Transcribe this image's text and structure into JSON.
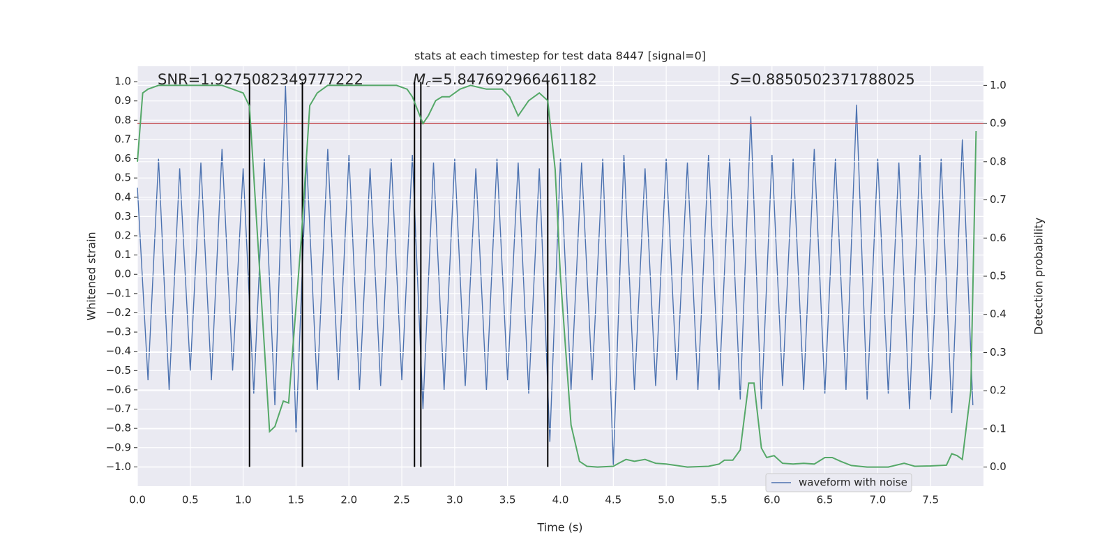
{
  "chart_data": {
    "type": "line",
    "title": "stats at each timestep for test data 8447 [signal=0]",
    "x_label": "Time (s)",
    "y_label": "Whitened strain",
    "y2_label": "Detection probability",
    "annotations": [
      {
        "text": "SNR=1.9275082349777222"
      },
      {
        "symbol": "M",
        "subscript": "c",
        "text": "=5.847692966461182"
      },
      {
        "symbol": "S",
        "text": "=0.8850502371788025"
      }
    ],
    "grid": true,
    "legend": "lower right",
    "xlim": [
      0,
      8
    ],
    "ylim": [
      -1.1,
      1.08
    ],
    "y2lim": [
      -0.05,
      1.05
    ],
    "xticks": [
      {
        "value": 0,
        "label": "0.0"
      },
      0.5,
      {
        "value": 1,
        "label": "1.0"
      },
      1.5,
      {
        "value": 2,
        "label": "2.0"
      },
      2.5,
      {
        "value": 3,
        "label": "3.0"
      },
      3.5,
      {
        "value": 4,
        "label": "4.0"
      },
      4.5,
      {
        "value": 5,
        "label": "5.0"
      },
      5.5,
      {
        "value": 6,
        "label": "6.0"
      },
      6.5,
      {
        "value": 7,
        "label": "7.0"
      },
      7.5
    ],
    "yticks": [
      {
        "value": -1,
        "label": "−1.0"
      },
      {
        "value": -0.9,
        "label": "−0.9"
      },
      {
        "value": -0.8,
        "label": "−0.8"
      },
      {
        "value": -0.7,
        "label": "−0.7"
      },
      {
        "value": -0.6,
        "label": "−0.6"
      },
      {
        "value": -0.5,
        "label": "−0.5"
      },
      {
        "value": -0.4,
        "label": "−0.4"
      },
      {
        "value": -0.3,
        "label": "−0.3"
      },
      {
        "value": -0.2,
        "label": "−0.2"
      },
      {
        "value": -0.1,
        "label": "−0.1"
      },
      {
        "value": 0,
        "label": "0.0"
      },
      0.1,
      0.2,
      0.3,
      0.4,
      0.5,
      0.6,
      0.7,
      0.8,
      0.9,
      {
        "value": 1,
        "label": "1.0"
      }
    ],
    "y2ticks": [
      {
        "value": 0,
        "label": "0.0"
      },
      0.1,
      0.2,
      0.3,
      0.4,
      0.5,
      0.6,
      0.7,
      0.8,
      0.9,
      {
        "value": 1,
        "label": "1.0"
      }
    ],
    "vlines": [
      1.06,
      1.56,
      2.62,
      2.68,
      3.88
    ],
    "vline_range": [
      -1,
      1
    ],
    "vline_color": "#000000",
    "threshold_y2": 0.9,
    "threshold_color": "#c44e52",
    "series": [
      {
        "name": "waveform with noise",
        "color": "#4c72b0",
        "x": [
          0.0,
          0.1,
          0.2,
          0.3,
          0.4,
          0.5,
          0.6,
          0.7,
          0.8,
          0.9,
          1.0,
          1.1,
          1.2,
          1.3,
          1.4,
          1.5,
          1.6,
          1.7,
          1.8,
          1.9,
          2.0,
          2.1,
          2.2,
          2.3,
          2.4,
          2.5,
          2.6,
          2.7,
          2.8,
          2.9,
          3.0,
          3.1,
          3.2,
          3.3,
          3.4,
          3.5,
          3.6,
          3.7,
          3.8,
          3.9,
          4.0,
          4.1,
          4.2,
          4.3,
          4.4,
          4.5,
          4.6,
          4.7,
          4.8,
          4.9,
          5.0,
          5.1,
          5.2,
          5.3,
          5.4,
          5.5,
          5.6,
          5.7,
          5.8,
          5.9,
          6.0,
          6.1,
          6.2,
          6.3,
          6.4,
          6.5,
          6.6,
          6.7,
          6.8,
          6.9,
          7.0,
          7.1,
          7.2,
          7.3,
          7.4,
          7.5,
          7.6,
          7.7,
          7.8,
          7.9
        ],
        "values": [
          0.45,
          -0.55,
          0.6,
          -0.6,
          0.55,
          -0.5,
          0.58,
          -0.55,
          0.65,
          -0.5,
          0.55,
          -0.62,
          0.6,
          -0.68,
          0.98,
          -0.82,
          0.6,
          -0.6,
          0.65,
          -0.55,
          0.62,
          -0.6,
          0.55,
          -0.58,
          0.6,
          -0.55,
          0.62,
          -0.7,
          0.58,
          -0.6,
          0.6,
          -0.58,
          0.55,
          -0.6,
          0.6,
          -0.55,
          0.58,
          -0.62,
          0.55,
          -0.87,
          0.6,
          -0.6,
          0.58,
          -0.55,
          0.6,
          -0.99,
          0.62,
          -0.6,
          0.55,
          -0.58,
          0.6,
          -0.55,
          0.58,
          -0.6,
          0.62,
          -0.6,
          0.6,
          -0.65,
          0.82,
          -0.7,
          0.62,
          -0.58,
          0.6,
          -0.6,
          0.65,
          -0.62,
          0.6,
          -0.6,
          0.88,
          -0.65,
          0.6,
          -0.62,
          0.58,
          -0.7,
          0.62,
          -0.65,
          0.6,
          -0.72,
          0.7,
          -0.68
        ]
      },
      {
        "color": "#55a868",
        "axis": "y2",
        "x": [
          0,
          0.05,
          0.1,
          0.2,
          0.4,
          0.6,
          0.8,
          0.9,
          1.0,
          1.06,
          1.25,
          1.3,
          1.38,
          1.43,
          1.55,
          1.63,
          1.7,
          1.8,
          2.0,
          2.2,
          2.45,
          2.55,
          2.6,
          2.7,
          2.75,
          2.82,
          2.88,
          2.95,
          3.05,
          3.15,
          3.3,
          3.45,
          3.52,
          3.6,
          3.7,
          3.8,
          3.88,
          3.95,
          4.0,
          4.1,
          4.18,
          4.25,
          4.35,
          4.5,
          4.55,
          4.62,
          4.7,
          4.8,
          4.9,
          5.0,
          5.2,
          5.4,
          5.5,
          5.55,
          5.63,
          5.7,
          5.78,
          5.83,
          5.9,
          5.95,
          6.02,
          6.1,
          6.2,
          6.3,
          6.4,
          6.5,
          6.57,
          6.65,
          6.75,
          6.9,
          7.1,
          7.25,
          7.35,
          7.5,
          7.65,
          7.7,
          7.75,
          7.8,
          7.88,
          7.93
        ],
        "values": [
          0.8,
          0.98,
          0.99,
          1.0,
          1.0,
          1.0,
          1.0,
          0.99,
          0.98,
          0.945,
          0.093,
          0.106,
          0.173,
          0.168,
          0.6,
          0.947,
          0.98,
          1.0,
          1.0,
          1.0,
          1.0,
          0.99,
          0.97,
          0.9,
          0.92,
          0.96,
          0.97,
          0.97,
          0.99,
          1.0,
          0.99,
          0.99,
          0.97,
          0.92,
          0.96,
          0.98,
          0.96,
          0.78,
          0.5,
          0.11,
          0.015,
          0.002,
          0.0,
          0.002,
          0.01,
          0.02,
          0.015,
          0.02,
          0.01,
          0.008,
          0.0,
          0.002,
          0.008,
          0.018,
          0.018,
          0.045,
          0.22,
          0.22,
          0.05,
          0.025,
          0.03,
          0.01,
          0.008,
          0.01,
          0.008,
          0.025,
          0.025,
          0.015,
          0.004,
          0.0,
          0.0,
          0.01,
          0.002,
          0.003,
          0.005,
          0.035,
          0.03,
          0.02,
          0.2,
          0.88
        ]
      }
    ]
  }
}
